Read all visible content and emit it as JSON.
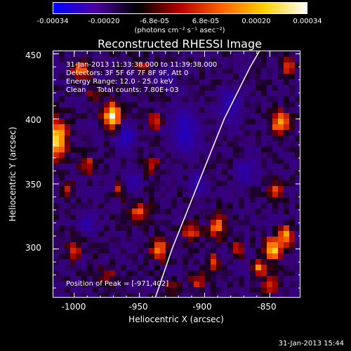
{
  "colorbar": {
    "ticks": [
      "-0.00034",
      "-0.00020",
      "-6.8e-05",
      "6.8e-05",
      "0.00020",
      "0.00034"
    ],
    "units": "(photons cm⁻² s⁻¹ asec⁻²)",
    "range": [
      -0.00034,
      0.00034
    ],
    "colors": [
      "#0000ff",
      "#4b00a0",
      "#000000",
      "#b40000",
      "#ff6400",
      "#ffd200",
      "#ffffff"
    ]
  },
  "plot": {
    "title": "Reconstructed RHESSI Image",
    "annotations": [
      "31-Jan-2013 11:33:38.000 to 11:39:38.000",
      "Detectors: 3F 5F 6F 7F 8F 9F, Att 0",
      "Energy Range: 12.0 - 25.0 keV",
      "Clean     Total counts: 7.80E+03"
    ],
    "peak_label": "Position of Peak = [-971,402]",
    "xlabel": "Heliocentric X (arcsec)",
    "ylabel": "Heliocentric Y (arcsec)",
    "xticks": [
      "-1000",
      "-950",
      "-900",
      "-850"
    ],
    "yticks": [
      "450",
      "400",
      "350",
      "300"
    ]
  },
  "chart_data": {
    "type": "heatmap",
    "title": "Reconstructed RHESSI Image",
    "xlabel": "Heliocentric X (arcsec)",
    "ylabel": "Heliocentric Y (arcsec)",
    "xlim": [
      -1016,
      -826
    ],
    "ylim": [
      262,
      452
    ],
    "x_ticks": [
      -1000,
      -950,
      -900,
      -850
    ],
    "y_ticks": [
      300,
      350,
      400,
      450
    ],
    "colorbar_range": [
      -0.00034,
      0.00034
    ],
    "peak": [
      -971,
      402
    ],
    "limb_curve": [
      [
        -938,
        262
      ],
      [
        -925,
        300
      ],
      [
        -905,
        350
      ],
      [
        -885,
        400
      ],
      [
        -865,
        440
      ],
      [
        -858,
        452
      ]
    ],
    "blobs": [
      {
        "x": -971,
        "y": 402,
        "w": 6,
        "h": 10,
        "v": 1.0
      },
      {
        "x": -1012,
        "y": 385,
        "w": 6,
        "h": 14,
        "v": 0.9
      },
      {
        "x": -995,
        "y": 437,
        "w": 6,
        "h": 7,
        "v": 0.55
      },
      {
        "x": -990,
        "y": 365,
        "w": 6,
        "h": 6,
        "v": 0.45
      },
      {
        "x": -950,
        "y": 328,
        "w": 7,
        "h": 8,
        "v": 0.5
      },
      {
        "x": -940,
        "y": 365,
        "w": 5,
        "h": 6,
        "v": 0.45
      },
      {
        "x": -938,
        "y": 398,
        "w": 5,
        "h": 6,
        "v": 0.5
      },
      {
        "x": -948,
        "y": 440,
        "w": 5,
        "h": 6,
        "v": 0.3
      },
      {
        "x": -935,
        "y": 300,
        "w": 6,
        "h": 8,
        "v": 0.55
      },
      {
        "x": -910,
        "y": 313,
        "w": 6,
        "h": 7,
        "v": 0.5
      },
      {
        "x": -890,
        "y": 318,
        "w": 6,
        "h": 8,
        "v": 0.6
      },
      {
        "x": -893,
        "y": 290,
        "w": 5,
        "h": 6,
        "v": 0.45
      },
      {
        "x": -848,
        "y": 300,
        "w": 6,
        "h": 8,
        "v": 0.85
      },
      {
        "x": -838,
        "y": 310,
        "w": 5,
        "h": 7,
        "v": 0.75
      },
      {
        "x": -842,
        "y": 397,
        "w": 6,
        "h": 9,
        "v": 0.75
      },
      {
        "x": -835,
        "y": 440,
        "w": 5,
        "h": 6,
        "v": 0.55
      },
      {
        "x": -858,
        "y": 285,
        "w": 5,
        "h": 6,
        "v": 0.6
      },
      {
        "x": -845,
        "y": 345,
        "w": 5,
        "h": 6,
        "v": 0.5
      },
      {
        "x": -850,
        "y": 272,
        "w": 6,
        "h": 6,
        "v": 0.45
      },
      {
        "x": -1000,
        "y": 300,
        "w": 6,
        "h": 8,
        "v": 0.35
      },
      {
        "x": -975,
        "y": 280,
        "w": 6,
        "h": 6,
        "v": 0.3
      },
      {
        "x": -965,
        "y": 345,
        "w": 5,
        "h": 6,
        "v": 0.35
      },
      {
        "x": -985,
        "y": 420,
        "w": 5,
        "h": 5,
        "v": 0.3
      },
      {
        "x": -905,
        "y": 275,
        "w": 6,
        "h": 6,
        "v": 0.4
      },
      {
        "x": -875,
        "y": 300,
        "w": 5,
        "h": 6,
        "v": 0.3
      },
      {
        "x": -925,
        "y": 270,
        "w": 5,
        "h": 5,
        "v": 0.3
      },
      {
        "x": -1005,
        "y": 345,
        "w": 5,
        "h": 6,
        "v": 0.3
      }
    ],
    "lows": [
      {
        "x": -960,
        "y": 385,
        "w": 7,
        "h": 9,
        "v": 0.5
      },
      {
        "x": -955,
        "y": 350,
        "w": 6,
        "h": 7,
        "v": 0.4
      },
      {
        "x": -915,
        "y": 390,
        "w": 10,
        "h": 16,
        "v": 0.5
      },
      {
        "x": -905,
        "y": 350,
        "w": 6,
        "h": 8,
        "v": 0.4
      },
      {
        "x": -880,
        "y": 410,
        "w": 8,
        "h": 12,
        "v": 0.45
      },
      {
        "x": -868,
        "y": 360,
        "w": 7,
        "h": 9,
        "v": 0.4
      },
      {
        "x": -990,
        "y": 320,
        "w": 6,
        "h": 7,
        "v": 0.35
      },
      {
        "x": -928,
        "y": 430,
        "w": 6,
        "h": 6,
        "v": 0.35
      }
    ]
  },
  "timestamp": "31-Jan-2013 15:44"
}
